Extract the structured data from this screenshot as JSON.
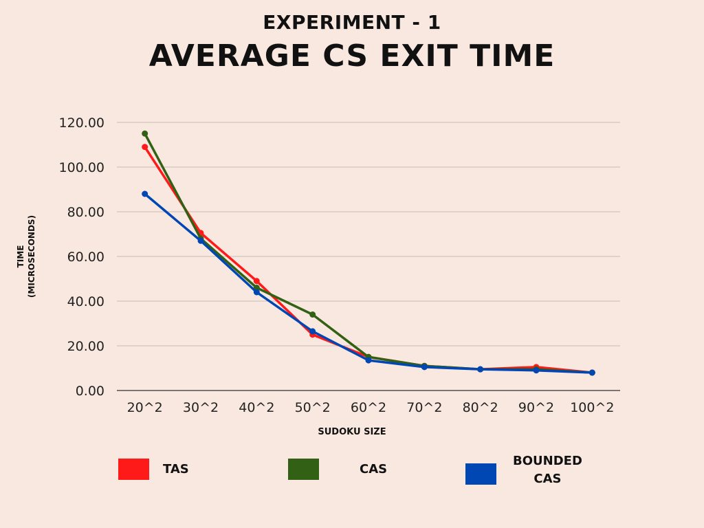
{
  "page": {
    "subtitle": "EXPERIMENT - 1",
    "title": "AVERAGE CS EXIT TIME",
    "background": "#F8E8DF"
  },
  "chart_data": {
    "type": "line",
    "title": "AVERAGE CS EXIT TIME",
    "xlabel": "SUDOKU SIZE",
    "ylabel_line1": "TIME",
    "ylabel_line2": "(MICROSECONDS)",
    "categories": [
      "20^2",
      "30^2",
      "40^2",
      "50^2",
      "60^2",
      "70^2",
      "80^2",
      "90^2",
      "100^2"
    ],
    "ylim": [
      0,
      120
    ],
    "yticks": [
      "0.00",
      "20.00",
      "40.00",
      "60.00",
      "80.00",
      "100.00",
      "120.00"
    ],
    "grid": true,
    "legend_position": "bottom",
    "series": [
      {
        "name": "TAS",
        "color": "#FF1A1A",
        "values": [
          109,
          70.5,
          49,
          25,
          15,
          11,
          9.5,
          10.5,
          8
        ]
      },
      {
        "name": "CAS",
        "color": "#326014",
        "values": [
          115,
          68,
          46,
          34,
          15,
          11,
          9.5,
          9.5,
          8
        ]
      },
      {
        "name": "BOUNDED CAS",
        "color": "#0047B3",
        "values": [
          88,
          67,
          44,
          26.5,
          13.5,
          10.5,
          9.5,
          9,
          8
        ]
      }
    ]
  },
  "legend": [
    {
      "line1": "TAS",
      "line2": "",
      "color": "#FF1A1A"
    },
    {
      "line1": "CAS",
      "line2": "",
      "color": "#326014"
    },
    {
      "line1": "BOUNDED",
      "line2": "CAS",
      "color": "#0047B3"
    }
  ]
}
